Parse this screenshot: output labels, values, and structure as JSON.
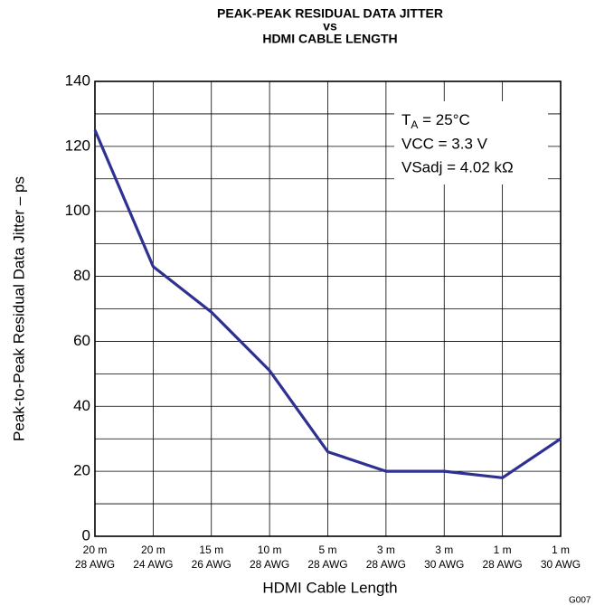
{
  "chart_data": {
    "type": "line",
    "title": [
      "PEAK-PEAK RESIDUAL DATA JITTER",
      "vs",
      "HDMI CABLE LENGTH"
    ],
    "x_label": "HDMI Cable Length",
    "y_label": "Peak-to-Peak Residual Data Jitter – ps",
    "categories": [
      [
        "20 m",
        "28 AWG"
      ],
      [
        "20 m",
        "24 AWG"
      ],
      [
        "15 m",
        "26 AWG"
      ],
      [
        "10 m",
        "28 AWG"
      ],
      [
        "5 m",
        "28 AWG"
      ],
      [
        "3 m",
        "28 AWG"
      ],
      [
        "3 m",
        "30 AWG"
      ],
      [
        "1 m",
        "28 AWG"
      ],
      [
        "1 m",
        "30 AWG"
      ]
    ],
    "series": [
      {
        "name": "Jitter",
        "color": "#2e3192",
        "values": [
          125,
          83,
          69,
          51,
          26,
          20,
          20,
          18,
          30
        ]
      }
    ],
    "ylim": [
      0,
      140
    ],
    "yticks": [
      0,
      20,
      40,
      60,
      80,
      100,
      120,
      140
    ],
    "yminor": [
      10,
      30,
      50,
      70,
      90,
      110,
      130
    ],
    "grid": true,
    "annotations": [
      {
        "main": "T",
        "sub": "A",
        "rest": " = 25°C"
      },
      "VCC = 3.3 V",
      "VSadj = 4.02 kΩ"
    ],
    "figure_id": "G007"
  }
}
